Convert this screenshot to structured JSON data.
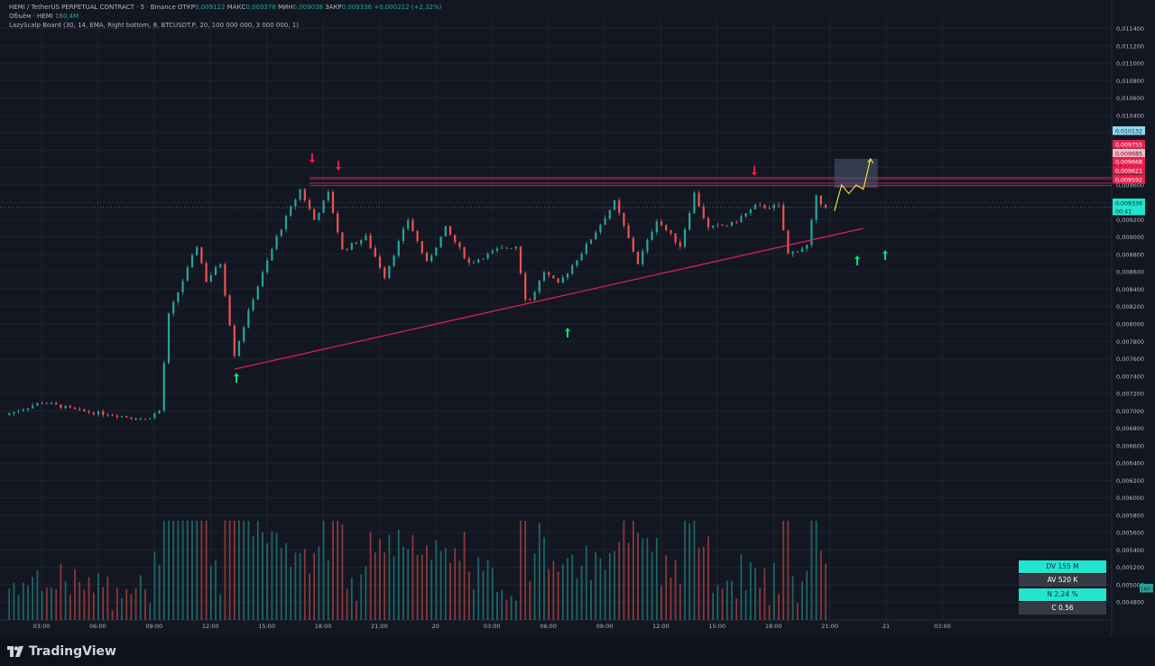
{
  "header": {
    "symbol": "HEMI / TetherUS PERPETUAL CONTRACT · 5 · Binance",
    "open_label": "ОТКР",
    "open_value": "0,009122",
    "high_label": "МАКС",
    "high_value": "0,009378",
    "low_label": "МИН",
    "low_value": "0,009038",
    "close_label": "ЗАКР",
    "close_value": "0,009336",
    "change_value": "+0,000212 (+2,32%)",
    "volume_label": "Объём · HEMI",
    "volume_value": "160,4M",
    "indicator_label": "LazyScalp Board (30, 14, EMA, Right bottom, 8, BTCUSDT.P, 20, 100 000 000, 3 000 000, 1)"
  },
  "brand": {
    "name": "TradingView"
  },
  "board": [
    {
      "text": "DV 155 M",
      "style": "teal"
    },
    {
      "text": "AV 520 K",
      "style": "dark"
    },
    {
      "text": "N 2.24 %",
      "style": "teal"
    },
    {
      "text": "C  0.56",
      "style": "dark"
    }
  ],
  "colors": {
    "background": "#131722",
    "up": "#26a69a",
    "down": "#ef5350",
    "trendline": "#e91e63",
    "level": "#e91e63",
    "forecast": "#ffeb3b",
    "signal_up": "#00e676",
    "signal_down": "#ff1744",
    "grid": "#1f2330",
    "axis_text": "#b2b5be"
  },
  "chart_data": {
    "type": "candlestick",
    "x_ticks": [
      "03:00",
      "06:00",
      "09:00",
      "12:00",
      "15:00",
      "18:00",
      "21:00",
      "20",
      "03:00",
      "06:00",
      "09:00",
      "12:00",
      "15:00",
      "18:00",
      "21:00",
      "21",
      "03:00"
    ],
    "y_ticks": [
      "0,011400",
      "0,011200",
      "0,011000",
      "0,010800",
      "0,010600",
      "0,010400",
      "0,010200",
      "0,010000",
      "0,009800",
      "0,009600",
      "0,009400",
      "0,009200",
      "0,009000",
      "0,008800",
      "0,008600",
      "0,008400",
      "0,008200",
      "0,008000",
      "0,007800",
      "0,007600",
      "0,007400",
      "0,007200",
      "0,007000",
      "0,006800",
      "0,006600",
      "0,006400",
      "0,006200",
      "0,006000",
      "0,005800",
      "0,005600",
      "0,005400",
      "0,005200",
      "0,005000",
      "0,004800"
    ],
    "ylim": [
      0.00475,
      0.01152
    ],
    "price_path": [
      {
        "t": "00:00",
        "p": 0.00695
      },
      {
        "t": "02:00",
        "p": 0.0071
      },
      {
        "t": "04:00",
        "p": 0.007
      },
      {
        "t": "06:00",
        "p": 0.00695
      },
      {
        "t": "07:30",
        "p": 0.0069
      },
      {
        "t": "08:15",
        "p": 0.007
      },
      {
        "t": "08:45",
        "p": 0.0081
      },
      {
        "t": "10:15",
        "p": 0.0089
      },
      {
        "t": "10:45",
        "p": 0.0085
      },
      {
        "t": "11:30",
        "p": 0.0087
      },
      {
        "t": "12:15",
        "p": 0.00765
      },
      {
        "t": "13:15",
        "p": 0.0083
      },
      {
        "t": "14:30",
        "p": 0.009
      },
      {
        "t": "15:45",
        "p": 0.00955
      },
      {
        "t": "16:30",
        "p": 0.0092
      },
      {
        "t": "17:15",
        "p": 0.0095
      },
      {
        "t": "18:00",
        "p": 0.00885
      },
      {
        "t": "19:15",
        "p": 0.009
      },
      {
        "t": "20:15",
        "p": 0.00855
      },
      {
        "t": "21:30",
        "p": 0.0092
      },
      {
        "t": "22:30",
        "p": 0.0087
      },
      {
        "t": "23:30",
        "p": 0.0091
      },
      {
        "t": "00:45",
        "p": 0.0087
      },
      {
        "t": "02:15",
        "p": 0.00885
      },
      {
        "t": "03:15",
        "p": 0.0089
      },
      {
        "t": "03:50",
        "p": 0.0082
      },
      {
        "t": "04:45",
        "p": 0.0086
      },
      {
        "t": "05:30",
        "p": 0.00845
      },
      {
        "t": "07:00",
        "p": 0.0089
      },
      {
        "t": "08:30",
        "p": 0.0094
      },
      {
        "t": "09:45",
        "p": 0.0087
      },
      {
        "t": "10:45",
        "p": 0.0092
      },
      {
        "t": "12:00",
        "p": 0.0089
      },
      {
        "t": "12:45",
        "p": 0.0095
      },
      {
        "t": "13:30",
        "p": 0.0091
      },
      {
        "t": "14:45",
        "p": 0.00915
      },
      {
        "t": "16:00",
        "p": 0.00935
      },
      {
        "t": "17:15",
        "p": 0.00935
      },
      {
        "t": "17:45",
        "p": 0.0088
      },
      {
        "t": "18:45",
        "p": 0.0089
      },
      {
        "t": "19:15",
        "p": 0.00945
      },
      {
        "t": "19:50",
        "p": 0.00934
      }
    ],
    "trendline": [
      {
        "t": "12:15",
        "p": 0.00748
      },
      {
        "t": "03:40",
        "p": 0.00815
      },
      {
        "t": "21:45",
        "p": 0.0091
      }
    ],
    "resistance_levels": [
      "0,009685",
      "0,009668",
      "0,009621",
      "0,009592"
    ],
    "price_labels": [
      {
        "text": "0,010132",
        "style": "target"
      },
      {
        "text": "0,009755",
        "style": "red"
      },
      {
        "text": "0,009685",
        "style": "pink"
      },
      {
        "text": "0,009668",
        "style": "red"
      },
      {
        "text": "0,009621",
        "style": "red"
      },
      {
        "text": "0,009592",
        "style": "red"
      },
      {
        "text": "0,009336",
        "style": "current"
      },
      {
        "text": "00:41",
        "style": "current"
      }
    ],
    "target_zone": {
      "from": 0.00957,
      "to": 0.0099
    },
    "forecast_path": [
      0.0093,
      0.0096,
      0.0095,
      0.0096,
      0.00955,
      0.0099
    ],
    "arrows_up": [
      "12:15",
      "03:40",
      "18:00",
      "19:20"
    ],
    "arrows_down": [
      "15:45",
      "17:00",
      "12:45"
    ],
    "volume": {
      "last": "160,4M"
    }
  }
}
